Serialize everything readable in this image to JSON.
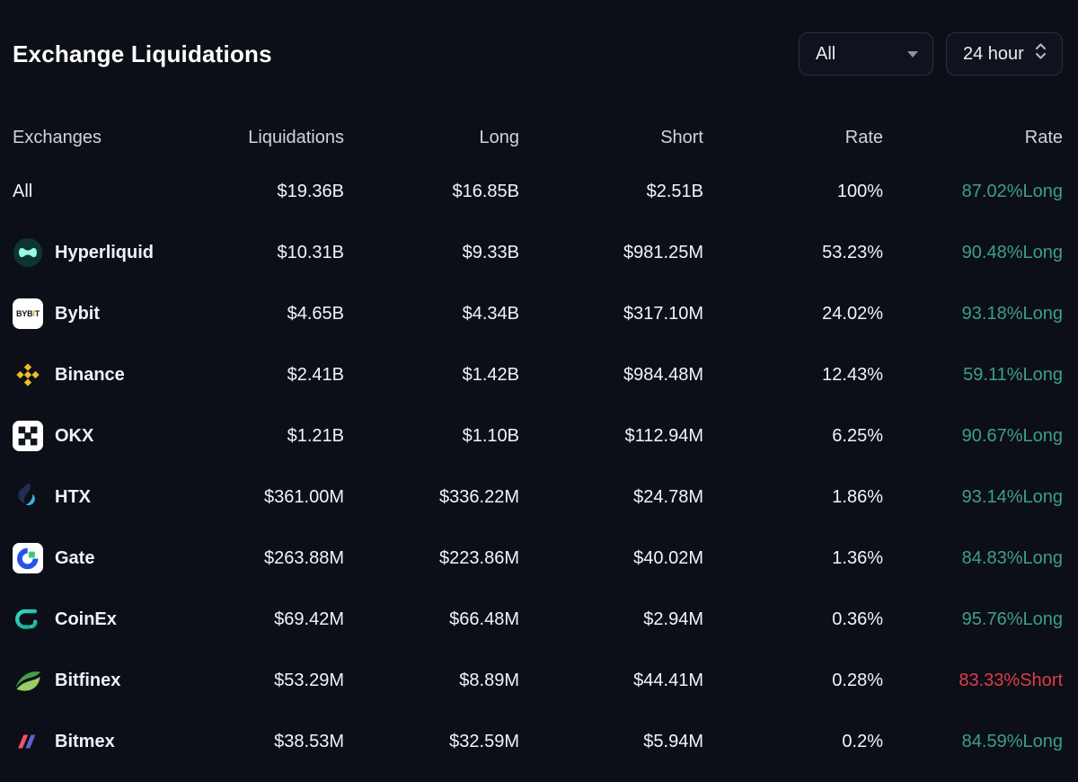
{
  "header": {
    "title": "Exchange Liquidations",
    "exchange_filter": {
      "value": "All"
    },
    "time_filter": {
      "value": "24 hour"
    }
  },
  "table": {
    "columns": [
      "Exchanges",
      "Liquidations",
      "Long",
      "Short",
      "Rate",
      "Rate"
    ],
    "rows": [
      {
        "exchange": "All",
        "icon": null,
        "liquidations": "$19.36B",
        "long": "$16.85B",
        "short": "$2.51B",
        "rate": "100%",
        "long_short_rate": "87.02%Long",
        "direction": "long"
      },
      {
        "exchange": "Hyperliquid",
        "icon": "hyperliquid",
        "liquidations": "$10.31B",
        "long": "$9.33B",
        "short": "$981.25M",
        "rate": "53.23%",
        "long_short_rate": "90.48%Long",
        "direction": "long"
      },
      {
        "exchange": "Bybit",
        "icon": "bybit",
        "icon_text": [
          "BYB",
          "I",
          "T"
        ],
        "liquidations": "$4.65B",
        "long": "$4.34B",
        "short": "$317.10M",
        "rate": "24.02%",
        "long_short_rate": "93.18%Long",
        "direction": "long"
      },
      {
        "exchange": "Binance",
        "icon": "binance",
        "liquidations": "$2.41B",
        "long": "$1.42B",
        "short": "$984.48M",
        "rate": "12.43%",
        "long_short_rate": "59.11%Long",
        "direction": "long"
      },
      {
        "exchange": "OKX",
        "icon": "okx",
        "liquidations": "$1.21B",
        "long": "$1.10B",
        "short": "$112.94M",
        "rate": "6.25%",
        "long_short_rate": "90.67%Long",
        "direction": "long"
      },
      {
        "exchange": "HTX",
        "icon": "htx",
        "liquidations": "$361.00M",
        "long": "$336.22M",
        "short": "$24.78M",
        "rate": "1.86%",
        "long_short_rate": "93.14%Long",
        "direction": "long"
      },
      {
        "exchange": "Gate",
        "icon": "gate",
        "liquidations": "$263.88M",
        "long": "$223.86M",
        "short": "$40.02M",
        "rate": "1.36%",
        "long_short_rate": "84.83%Long",
        "direction": "long"
      },
      {
        "exchange": "CoinEx",
        "icon": "coinex",
        "liquidations": "$69.42M",
        "long": "$66.48M",
        "short": "$2.94M",
        "rate": "0.36%",
        "long_short_rate": "95.76%Long",
        "direction": "long"
      },
      {
        "exchange": "Bitfinex",
        "icon": "bitfinex",
        "liquidations": "$53.29M",
        "long": "$8.89M",
        "short": "$44.41M",
        "rate": "0.28%",
        "long_short_rate": "83.33%Short",
        "direction": "short"
      },
      {
        "exchange": "Bitmex",
        "icon": "bitmex",
        "liquidations": "$38.53M",
        "long": "$32.59M",
        "short": "$5.94M",
        "rate": "0.2%",
        "long_short_rate": "84.59%Long",
        "direction": "long"
      }
    ]
  },
  "colors": {
    "long": "#3e9e89",
    "short": "#e23b47"
  }
}
